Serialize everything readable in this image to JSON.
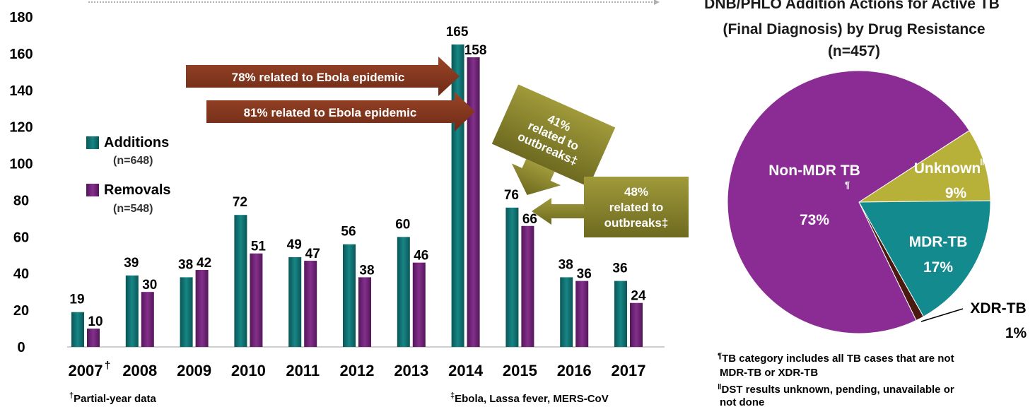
{
  "colors": {
    "additions": "#0f6f6f",
    "removals": "#6b1f73",
    "ebola_arrow": "#8b3a22",
    "outbreak_box": "#8e8a2c",
    "pie_non_mdr": "#8a2c94",
    "pie_unknown": "#b7b13a",
    "pie_mdr": "#138a8e",
    "pie_xdr": "#4a1a10"
  },
  "chart_data": [
    {
      "type": "bar",
      "categories": [
        "2007",
        "2008",
        "2009",
        "2010",
        "2011",
        "2012",
        "2013",
        "2014",
        "2015",
        "2016",
        "2017"
      ],
      "category_marks": [
        "†",
        "",
        "",
        "",
        "",
        "",
        "",
        "",
        "",
        "",
        ""
      ],
      "series": [
        {
          "name": "Additions",
          "n_label": "(n=648)",
          "values": [
            19,
            39,
            38,
            72,
            49,
            56,
            60,
            165,
            76,
            38,
            36
          ]
        },
        {
          "name": "Removals",
          "n_label": "(n=548)",
          "values": [
            10,
            30,
            42,
            51,
            47,
            38,
            46,
            158,
            66,
            36,
            24
          ]
        }
      ],
      "yticks": [
        0,
        20,
        40,
        60,
        80,
        100,
        120,
        140,
        160,
        180
      ],
      "ylim": [
        0,
        180
      ],
      "legend_position": "left",
      "annotations": {
        "ebola_additions": "78% related to Ebola epidemic",
        "ebola_removals": "81% related to Ebola epidemic",
        "outbreak_2015_additions": [
          "41%",
          "related to",
          "outbreaks‡"
        ],
        "outbreak_2015_removals": [
          "48%",
          "related to",
          "outbreaks‡"
        ]
      },
      "footnotes": {
        "partial_year": {
          "mark": "†",
          "text": "Partial-year data"
        },
        "outbreaks": {
          "mark": "‡",
          "text": "Ebola, Lassa fever, MERS-CoV"
        }
      }
    },
    {
      "type": "pie",
      "title": [
        "DNB/PHLO Addition Actions for Active TB",
        "(Final Diagnosis) by Drug Resistance",
        "(n=457)"
      ],
      "slices": [
        {
          "label": "Non-MDR TB",
          "label_mark": "¶",
          "value": 73,
          "display": "73%"
        },
        {
          "label": "Unknown",
          "label_mark": "‖",
          "value": 9,
          "display": "9%"
        },
        {
          "label": "MDR-TB",
          "label_mark": "",
          "value": 17,
          "display": "17%"
        },
        {
          "label": "XDR-TB",
          "label_mark": "",
          "value": 1,
          "display": "1%"
        }
      ],
      "footnotes": [
        {
          "mark": "¶",
          "lines": [
            "TB category includes all TB cases that are not",
            "MDR-TB or XDR-TB"
          ]
        },
        {
          "mark": "‖",
          "lines": [
            "DST results unknown, pending, unavailable or",
            "not done"
          ]
        }
      ]
    }
  ]
}
